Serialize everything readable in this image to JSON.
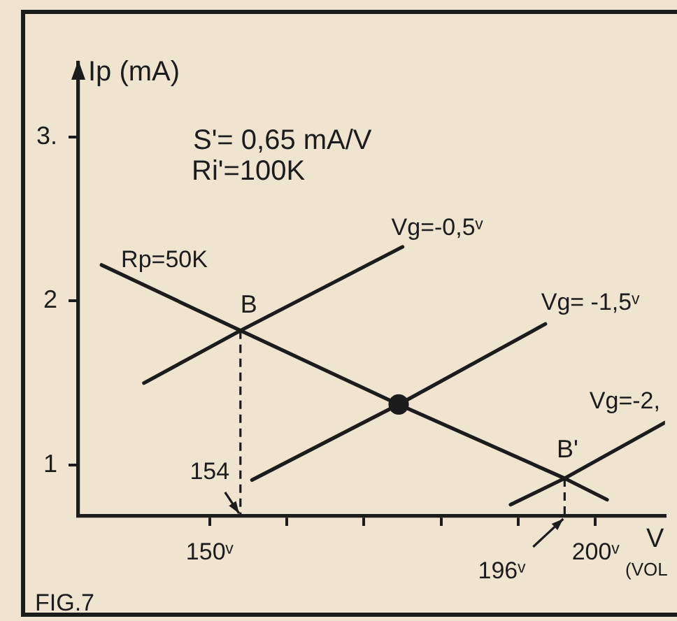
{
  "chart_data": {
    "type": "line",
    "xlabel": "V (VOL",
    "ylabel": "Ip (mA)",
    "annotations": [
      "S'= 0,65 mA/V",
      "Ri'=100K",
      {
        "text": "B",
        "x": 154,
        "y": 1.82
      },
      {
        "text": "B'",
        "x": 196,
        "y": 0.92
      },
      "154",
      "196ᵛ",
      "FIG.7"
    ],
    "series": [
      {
        "name": "Rp=50K",
        "color": "#1c1c1c",
        "x": [
          136,
          154,
          174.5,
          196,
          201.5
        ],
        "values": [
          2.22,
          1.82,
          1.37,
          0.92,
          0.79
        ]
      },
      {
        "name": "Vg=-0,5ᵛ",
        "color": "#1c1c1c",
        "x": [
          141.5,
          154,
          175
        ],
        "values": [
          1.5,
          1.82,
          2.33
        ]
      },
      {
        "name": "Vg= -1,5ᵛ",
        "color": "#1c1c1c",
        "x": [
          155.5,
          174.5,
          193.5
        ],
        "values": [
          0.91,
          1.37,
          1.86
        ]
      },
      {
        "name": "Vg=-2,",
        "color": "#1c1c1c",
        "x": [
          189,
          196,
          209
        ],
        "values": [
          0.76,
          0.92,
          1.26
        ]
      },
      {
        "color": "#1c1c1c",
        "x": [
          154,
          154
        ],
        "values": [
          1.82,
          0.69
        ],
        "line_style": "dashed"
      },
      {
        "color": "#1c1c1c",
        "x": [
          196,
          196
        ],
        "values": [
          0.92,
          0.69
        ],
        "line_style": "dashed"
      },
      {
        "type": "scatter",
        "color": "#1c1c1c",
        "x": [
          174.5
        ],
        "values": [
          1.37
        ],
        "marker": "circle"
      }
    ],
    "xlim": [
      133,
      209
    ],
    "xticks": [
      {
        "value": 150,
        "label": "150ᵛ"
      },
      {
        "value": 160,
        "label": null
      },
      {
        "value": 170,
        "label": null
      },
      {
        "value": 180,
        "label": null
      },
      {
        "value": 190,
        "label": null
      },
      {
        "value": 200,
        "label": "200ᵛ"
      }
    ],
    "ylim": [
      0.69,
      3.45
    ],
    "yticks": [
      1,
      2,
      {
        "value": 3,
        "label": "3."
      }
    ],
    "grid": false,
    "legend": false,
    "marker": "none",
    "line_style": "solid"
  }
}
